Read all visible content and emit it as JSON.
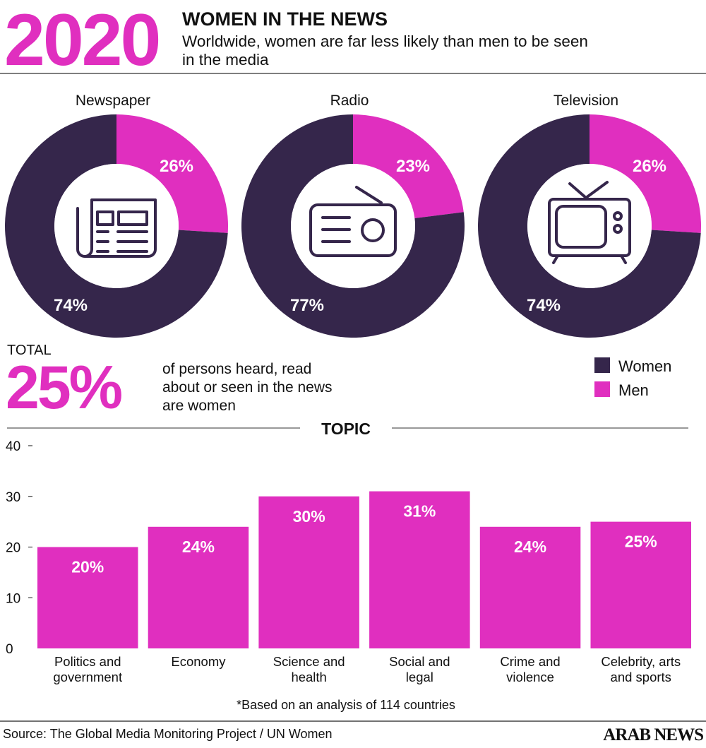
{
  "header": {
    "year": "2020",
    "title": "WOMEN IN THE NEWS",
    "subtitle_line1": "Worldwide, women are far less likely than men to be seen",
    "subtitle_line2": "in the media"
  },
  "colors": {
    "accent": "#e02fbf",
    "dark": "#35264b",
    "text": "#111111"
  },
  "chart_data": [
    {
      "type": "pie",
      "title": "Media share (donuts)",
      "charts": [
        {
          "title": "Newspaper",
          "icon": "newspaper-icon",
          "slices": [
            {
              "name": "Men",
              "value": 26,
              "label": "26%"
            },
            {
              "name": "Women",
              "value": 74,
              "label": "74%"
            }
          ]
        },
        {
          "title": "Radio",
          "icon": "radio-icon",
          "slices": [
            {
              "name": "Men",
              "value": 23,
              "label": "23%"
            },
            {
              "name": "Women",
              "value": 77,
              "label": "77%"
            }
          ]
        },
        {
          "title": "Television",
          "icon": "tv-icon",
          "slices": [
            {
              "name": "Men",
              "value": 26,
              "label": "26%"
            },
            {
              "name": "Women",
              "value": 74,
              "label": "74%"
            }
          ]
        }
      ],
      "legend": [
        {
          "name": "Women",
          "color": "#35264b"
        },
        {
          "name": "Men",
          "color": "#e02fbf"
        }
      ],
      "legend_placement": "right"
    },
    {
      "type": "bar",
      "title": "TOPIC",
      "categories": [
        [
          "Politics and",
          "government"
        ],
        [
          "Economy"
        ],
        [
          "Science and",
          "health"
        ],
        [
          "Social and",
          "legal"
        ],
        [
          "Crime and",
          "violence"
        ],
        [
          "Celebrity, arts",
          "and sports"
        ]
      ],
      "values": [
        20,
        24,
        30,
        31,
        24,
        25
      ],
      "labels": [
        "20%",
        "24%",
        "30%",
        "31%",
        "24%",
        "25%"
      ],
      "ylim": [
        0,
        40
      ],
      "yticks": [
        0,
        10,
        20,
        30,
        40
      ],
      "xlabel": "",
      "ylabel": ""
    }
  ],
  "total": {
    "label": "TOTAL",
    "value": "25%",
    "desc_line1": "of persons heard, read",
    "desc_line2": "about or seen in the news",
    "desc_line3": "are women"
  },
  "footnote": "*Based on an analysis of 114 countries",
  "source": "Source: The Global Media Monitoring Project / UN Women",
  "logo": "ARAB NEWS"
}
